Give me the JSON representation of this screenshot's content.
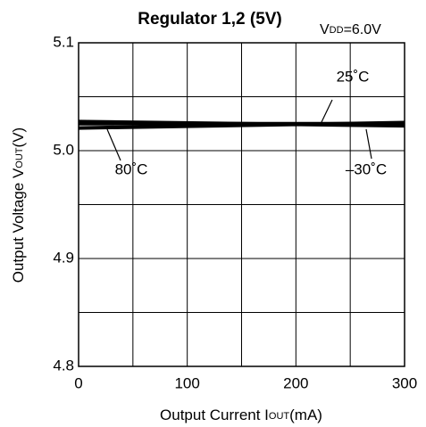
{
  "chart_data": {
    "type": "line",
    "title": "Regulator 1,2 (5V)",
    "subtitle": [
      "V",
      "DD",
      "=6.0V"
    ],
    "xlabel": [
      "Output Current I",
      "OUT",
      "(mA)"
    ],
    "ylabel": [
      "Output Voltage V",
      "OUT",
      "(V)"
    ],
    "x": [
      0,
      300
    ],
    "series": [
      {
        "name": "25˚C",
        "color": "#000000",
        "values": [
          5.025,
          5.025
        ]
      },
      {
        "name": "80˚C",
        "color": "#000000",
        "values": [
          5.021,
          5.026
        ]
      },
      {
        "name": "–30˚C",
        "color": "#000000",
        "values": [
          5.027,
          5.023
        ]
      }
    ],
    "xlim": [
      0,
      300
    ],
    "xticks": [
      0,
      100,
      200,
      300
    ],
    "xminor": [
      50,
      150,
      250
    ],
    "ylim": [
      4.8,
      5.1
    ],
    "yticks": [
      {
        "value": 4.8,
        "label": "4.8"
      },
      {
        "value": 4.9,
        "label": "4.9"
      },
      {
        "value": 5,
        "label": "5.0"
      },
      {
        "value": 5.1,
        "label": "5.1"
      }
    ],
    "yminor": [
      4.85,
      4.95,
      5.05
    ],
    "grid": true
  }
}
